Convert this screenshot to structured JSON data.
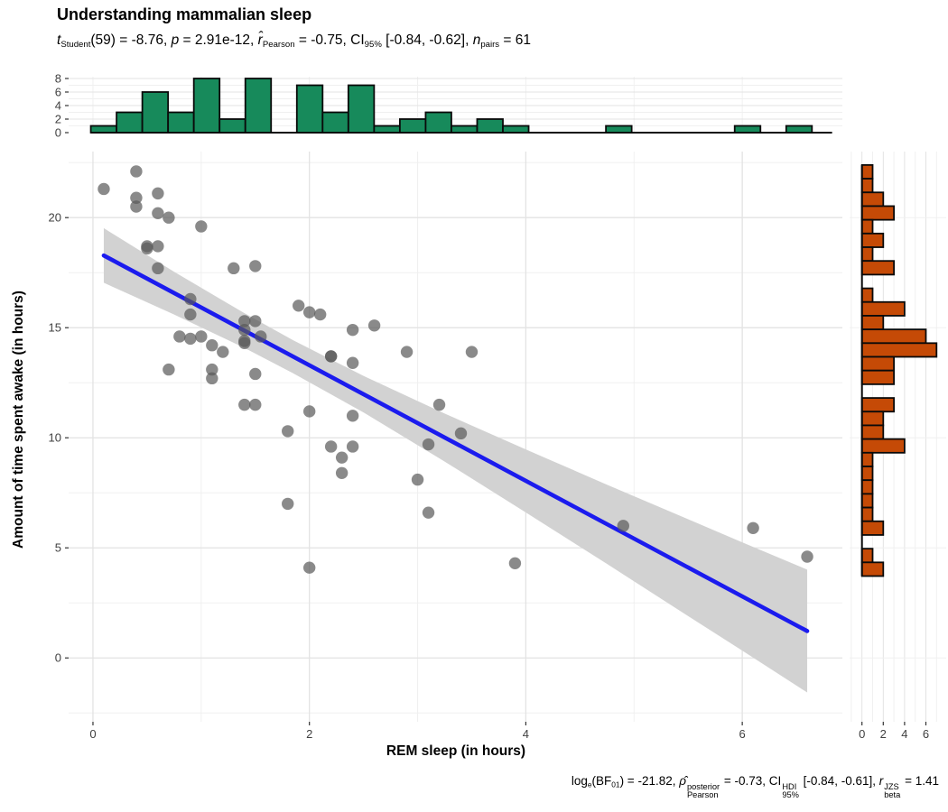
{
  "title": "Understanding mammalian sleep",
  "subtitle_segments": [
    {
      "t": "t",
      "i": true
    },
    {
      "sub": "Student"
    },
    {
      "t": "(59) = -8.76, "
    },
    {
      "t": "p",
      "i": true
    },
    {
      "t": " = 2.91e-12, "
    },
    {
      "t": "r̂",
      "i": true
    },
    {
      "sub": "Pearson"
    },
    {
      "t": " = -0.75, CI"
    },
    {
      "sub": "95%"
    },
    {
      "t": " [-0.84, -0.62], "
    },
    {
      "t": "n",
      "i": true
    },
    {
      "sub": "pairs"
    },
    {
      "t": " = 61"
    }
  ],
  "caption_segments": [
    {
      "t": "log"
    },
    {
      "sub": "e"
    },
    {
      "t": "(BF"
    },
    {
      "sub": "01"
    },
    {
      "t": ") = -21.82, "
    },
    {
      "t": "ρ̂",
      "i": true
    },
    {
      "stack": {
        "sup": "posterior",
        "sub": "Pearson"
      }
    },
    {
      "t": " = -0.73, CI"
    },
    {
      "stack": {
        "sup": "HDI",
        "sub": "95%"
      }
    },
    {
      "t": " [-0.84, -0.61], "
    },
    {
      "t": "r",
      "i": true
    },
    {
      "stack": {
        "sup": "JZS",
        "sub": "beta"
      }
    },
    {
      "t": " = 1.41"
    }
  ],
  "axes": {
    "x_title": "REM sleep (in hours)",
    "y_title": "Amount of time spent awake (in hours)",
    "x_ticks": [
      0,
      2,
      4,
      6
    ],
    "y_ticks": [
      0,
      5,
      10,
      15,
      20
    ],
    "top_hist_ticks": [
      0,
      2,
      4,
      6,
      8
    ],
    "right_hist_ticks": [
      0,
      2,
      4,
      6
    ]
  },
  "colors": {
    "top_hist_fill": "#178A5B",
    "right_hist_fill": "#C54A06",
    "bar_stroke": "#0a0a0a",
    "regression_line": "#1b1bee",
    "ci_band": "#d2d2d2",
    "point": "#595959",
    "grid_major": "#e3e3e3",
    "grid_minor": "#f0f0f0",
    "tick_text": "#404040",
    "tick_mark": "#333333"
  },
  "chart_data": {
    "type": "scatter",
    "title": "Understanding mammalian sleep",
    "xlabel": "REM sleep (in hours)",
    "ylabel": "Amount of time spent awake (in hours)",
    "xlim": [
      -0.225,
      6.925
    ],
    "ylim": [
      -2.9,
      23.0
    ],
    "grid": true,
    "n_pairs": 61,
    "points": [
      [
        0.1,
        21.3
      ],
      [
        0.4,
        20.9
      ],
      [
        0.4,
        22.1
      ],
      [
        0.4,
        20.5
      ],
      [
        0.5,
        18.7
      ],
      [
        0.5,
        18.6
      ],
      [
        0.6,
        18.7
      ],
      [
        0.6,
        21.1
      ],
      [
        0.6,
        17.7
      ],
      [
        0.6,
        20.2
      ],
      [
        0.7,
        20.0
      ],
      [
        0.7,
        13.1
      ],
      [
        0.8,
        14.6
      ],
      [
        0.9,
        14.5
      ],
      [
        0.9,
        16.3
      ],
      [
        0.9,
        15.6
      ],
      [
        1.0,
        14.6
      ],
      [
        1.0,
        19.6
      ],
      [
        1.1,
        13.1
      ],
      [
        1.1,
        14.2
      ],
      [
        1.1,
        12.7
      ],
      [
        1.2,
        13.9
      ],
      [
        1.3,
        17.7
      ],
      [
        1.4,
        15.3
      ],
      [
        1.4,
        14.9
      ],
      [
        1.4,
        11.5
      ],
      [
        1.4,
        14.3
      ],
      [
        1.4,
        14.4
      ],
      [
        1.5,
        11.5
      ],
      [
        1.5,
        17.8
      ],
      [
        1.5,
        12.9
      ],
      [
        1.5,
        15.3
      ],
      [
        1.55,
        14.6
      ],
      [
        1.8,
        7.0
      ],
      [
        1.8,
        10.3
      ],
      [
        1.9,
        16.0
      ],
      [
        2.0,
        15.7
      ],
      [
        2.0,
        4.1
      ],
      [
        2.0,
        11.2
      ],
      [
        2.1,
        15.6
      ],
      [
        2.2,
        9.6
      ],
      [
        2.2,
        13.7
      ],
      [
        2.2,
        13.7
      ],
      [
        2.3,
        9.1
      ],
      [
        2.3,
        8.4
      ],
      [
        2.4,
        9.6
      ],
      [
        2.4,
        11.0
      ],
      [
        2.4,
        13.4
      ],
      [
        2.4,
        14.9
      ],
      [
        2.6,
        15.1
      ],
      [
        2.9,
        13.9
      ],
      [
        3.0,
        8.1
      ],
      [
        3.1,
        6.6
      ],
      [
        3.1,
        9.7
      ],
      [
        3.2,
        11.5
      ],
      [
        3.4,
        10.2
      ],
      [
        3.5,
        13.9
      ],
      [
        3.9,
        4.3
      ],
      [
        4.9,
        6.0
      ],
      [
        6.1,
        5.9
      ],
      [
        6.6,
        4.6
      ]
    ],
    "regression_line": {
      "x1": 0.1,
      "y1": 18.28,
      "x2": 6.6,
      "y2": 1.22
    },
    "ci_band": {
      "x": [
        0.1,
        0.75,
        1.4,
        1.85,
        2.5,
        3.25,
        4.0,
        4.75,
        5.5,
        6.0,
        6.6
      ],
      "upper": [
        19.52,
        17.54,
        15.66,
        14.43,
        12.81,
        11.1,
        9.47,
        7.87,
        6.3,
        5.25,
        4.01
      ],
      "lower": [
        17.04,
        15.6,
        14.08,
        12.93,
        11.15,
        8.92,
        6.61,
        4.27,
        1.9,
        0.33,
        -1.57
      ]
    },
    "top_histogram": {
      "start": -0.02,
      "binwidth": 0.238,
      "baseline_end": 6.83,
      "ymax": 8,
      "counts": [
        1,
        3,
        6,
        3,
        8,
        2,
        8,
        0,
        7,
        3,
        7,
        1,
        2,
        3,
        1,
        2,
        1,
        0,
        0,
        0,
        1,
        0,
        0,
        0,
        0,
        1,
        0,
        1
      ]
    },
    "right_histogram": {
      "start_top": 22.39,
      "binheight": 0.6224,
      "xmax": 7,
      "counts": [
        1,
        1,
        2,
        3,
        1,
        2,
        1,
        3,
        0,
        1,
        4,
        2,
        6,
        7,
        3,
        3,
        0,
        3,
        2,
        2,
        4,
        1,
        1,
        1,
        1,
        1,
        2,
        0,
        1,
        2
      ]
    }
  }
}
